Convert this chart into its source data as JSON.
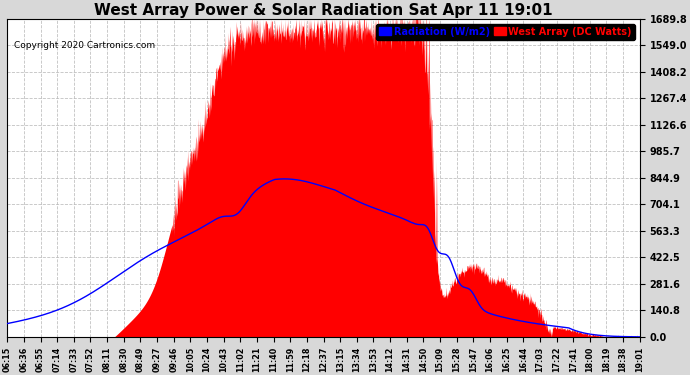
{
  "title": "West Array Power & Solar Radiation Sat Apr 11 19:01",
  "copyright": "Copyright 2020 Cartronics.com",
  "legend_labels": [
    "Radiation (W/m2)",
    "West Array (DC Watts)"
  ],
  "legend_colors": [
    "blue",
    "red"
  ],
  "yticks": [
    0.0,
    140.8,
    281.6,
    422.5,
    563.3,
    704.1,
    844.9,
    985.7,
    1126.6,
    1267.4,
    1408.2,
    1549.0,
    1689.8
  ],
  "ymax": 1689.8,
  "background_color": "#d8d8d8",
  "plot_bg_color": "#ffffff",
  "title_fontsize": 11,
  "grid_color": "#bbbbbb",
  "xtick_labels": [
    "06:15",
    "06:36",
    "06:55",
    "07:14",
    "07:33",
    "07:52",
    "08:11",
    "08:30",
    "08:49",
    "09:27",
    "09:46",
    "10:05",
    "10:24",
    "10:43",
    "11:02",
    "11:21",
    "11:40",
    "11:59",
    "12:18",
    "12:37",
    "13:15",
    "13:34",
    "13:53",
    "14:12",
    "14:31",
    "14:50",
    "15:09",
    "15:28",
    "15:47",
    "16:06",
    "16:25",
    "16:44",
    "17:03",
    "17:22",
    "17:41",
    "18:00",
    "18:19",
    "18:38",
    "19:01"
  ],
  "total_minutes": 766
}
